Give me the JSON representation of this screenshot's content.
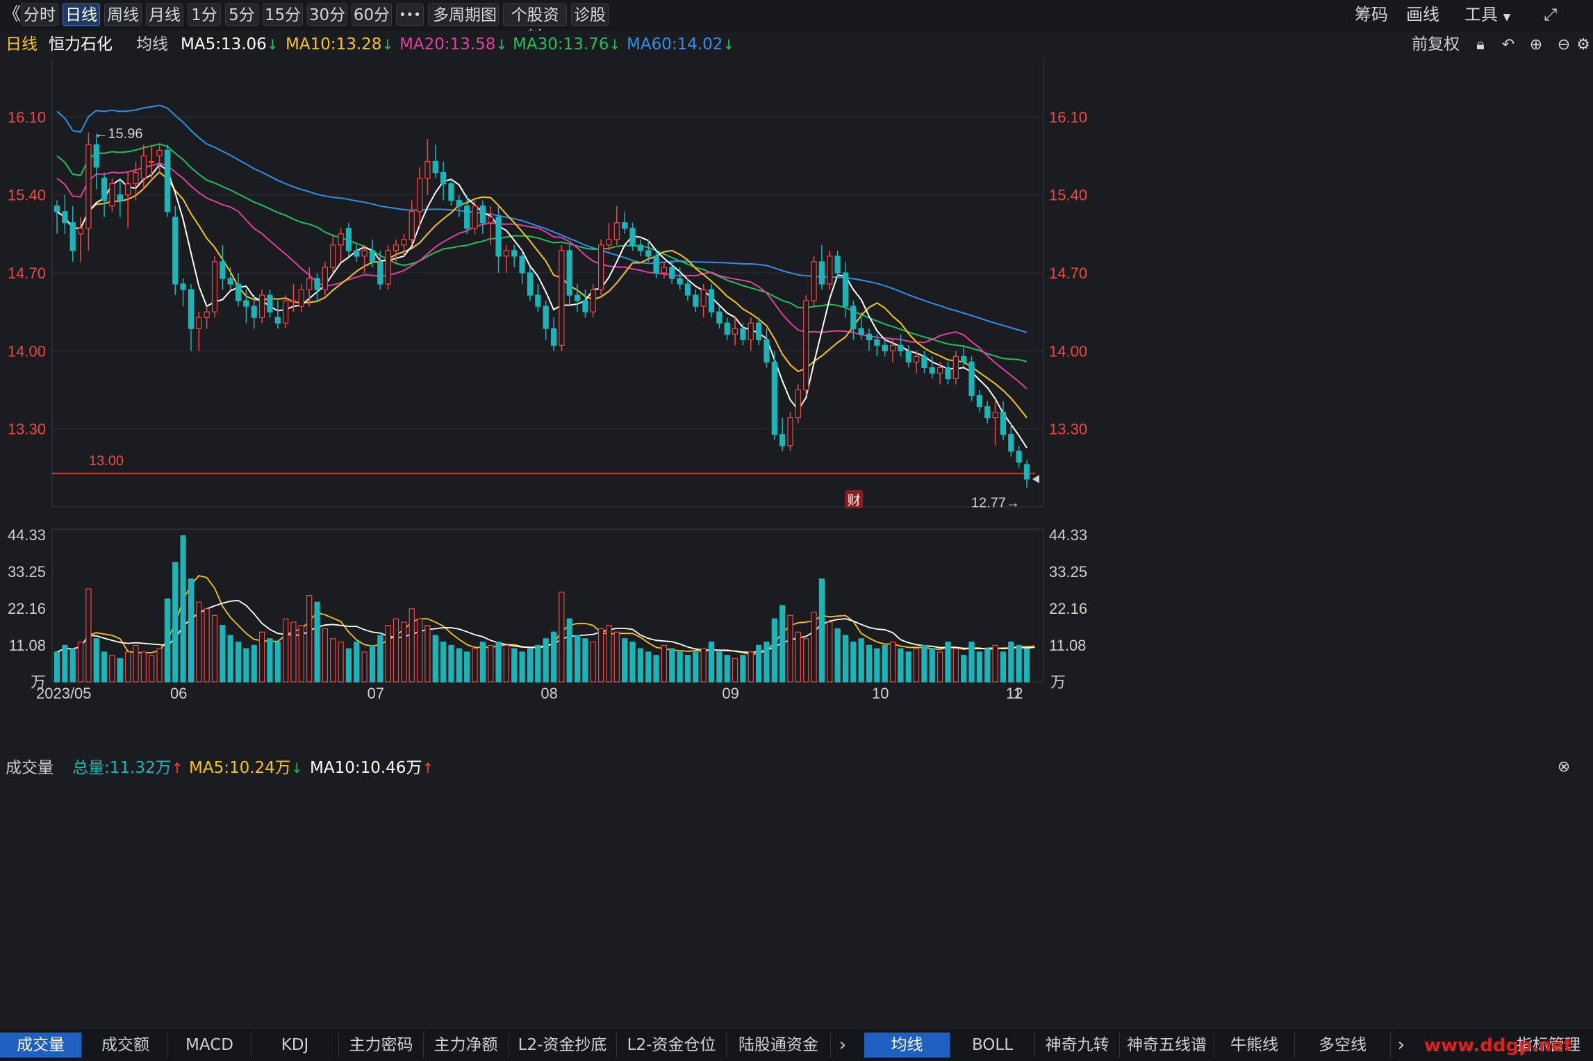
{
  "toolbar": {
    "back_glyph": "《",
    "periods": [
      "分时",
      "日线",
      "周线",
      "月线",
      "1分",
      "5分",
      "15分",
      "30分",
      "60分"
    ],
    "active_period": "日线",
    "more_label": "•••",
    "multi_period_label": "多周期图",
    "stock_info_label": "个股资料",
    "diagnose_label": "诊股",
    "right_items": [
      "筹码",
      "画线",
      "工具"
    ],
    "fullscreen_icon": "fullscreen-icon"
  },
  "infobar": {
    "period_label": "日线",
    "stock_name": "恒力石化",
    "ma_label": "均线",
    "ma5": "MA5:13.06",
    "ma10": "MA10:13.28",
    "ma20": "MA20:13.58",
    "ma30": "MA30:13.76",
    "ma60": "MA60:14.02",
    "down_arrow": "↓",
    "adjust_label": "前复权",
    "icons": [
      "lock-icon",
      "undo-icon",
      "zoom-in-icon",
      "zoom-out-icon",
      "settings-icon"
    ]
  },
  "price_axis": {
    "ticks": [
      "16.10",
      "15.40",
      "14.70",
      "14.00",
      "13.30"
    ]
  },
  "annotations": {
    "high_label": "←15.96",
    "low_label": "12.77→",
    "level_line_label": "13.00",
    "finance_marker": "财"
  },
  "volume": {
    "title": "成交量",
    "total": "总量:11.32万",
    "ma5": "MA5:10.24万",
    "ma10": "MA10:10.46万",
    "up_arrow": "↑",
    "down_arrow": "↓",
    "ticks": [
      "44.33",
      "33.25",
      "22.16",
      "11.08"
    ],
    "unit": "万"
  },
  "date_axis": {
    "labels": [
      "2023/05",
      "06",
      "07",
      "08",
      "09",
      "10",
      "11",
      "12"
    ]
  },
  "bottom_tabs_left": [
    "成交量",
    "成交额",
    "MACD",
    "KDJ",
    "主力密码",
    "主力净额",
    "L2-资金抄底",
    "L2-资金仓位",
    "陆股通资金"
  ],
  "bottom_tabs_right": [
    "均线",
    "BOLL",
    "神奇九转",
    "神奇五线谱",
    "牛熊线",
    "多空线"
  ],
  "bottom_active_left": "成交量",
  "bottom_active_right": "均线",
  "indicator_manage": "指标管理",
  "watermark": "www.ddgp.net",
  "colors": {
    "up": "#f04848",
    "down": "#1ab5b8",
    "ma5": "#ffffff",
    "ma10": "#f5c518",
    "ma20": "#e040a0",
    "ma30": "#1fc060",
    "ma60": "#2f8fe8",
    "axis_text": "#f04848",
    "level_line": "#e83030"
  },
  "chart_data": {
    "type": "candlestick",
    "title": "",
    "x_period_labels": [
      "2023/05",
      "06",
      "07",
      "08",
      "09",
      "10",
      "11",
      "12"
    ],
    "ylim": [
      12.6,
      16.7
    ],
    "candles_ohlc": [
      [
        15.3,
        15.35,
        15.05,
        15.25
      ],
      [
        15.25,
        15.4,
        15.05,
        15.15
      ],
      [
        15.15,
        15.3,
        14.8,
        14.9
      ],
      [
        15.05,
        15.2,
        14.8,
        15.1
      ],
      [
        15.1,
        15.96,
        14.9,
        15.85
      ],
      [
        15.85,
        15.95,
        15.45,
        15.65
      ],
      [
        15.55,
        15.6,
        15.2,
        15.35
      ],
      [
        15.3,
        15.55,
        15.25,
        15.5
      ],
      [
        15.4,
        15.55,
        15.2,
        15.35
      ],
      [
        15.4,
        15.6,
        15.1,
        15.5
      ],
      [
        15.5,
        15.7,
        15.35,
        15.6
      ],
      [
        15.55,
        15.85,
        15.45,
        15.75
      ],
      [
        15.7,
        15.85,
        15.55,
        15.7
      ],
      [
        15.75,
        15.85,
        15.6,
        15.8
      ],
      [
        15.8,
        15.85,
        15.2,
        15.25
      ],
      [
        15.2,
        15.3,
        14.5,
        14.6
      ],
      [
        14.6,
        14.65,
        14.4,
        14.55
      ],
      [
        14.55,
        14.6,
        14.0,
        14.2
      ],
      [
        14.2,
        14.35,
        14.0,
        14.3
      ],
      [
        14.3,
        14.4,
        14.2,
        14.35
      ],
      [
        14.35,
        14.85,
        14.3,
        14.8
      ],
      [
        14.8,
        14.95,
        14.55,
        14.65
      ],
      [
        14.65,
        14.75,
        14.55,
        14.6
      ],
      [
        14.6,
        14.7,
        14.4,
        14.45
      ],
      [
        14.45,
        14.55,
        14.25,
        14.4
      ],
      [
        14.4,
        14.5,
        14.2,
        14.3
      ],
      [
        14.3,
        14.55,
        14.25,
        14.5
      ],
      [
        14.5,
        14.55,
        14.3,
        14.35
      ],
      [
        14.3,
        14.45,
        14.2,
        14.25
      ],
      [
        14.25,
        14.5,
        14.2,
        14.45
      ],
      [
        14.45,
        14.6,
        14.35,
        14.45
      ],
      [
        14.4,
        14.6,
        14.35,
        14.55
      ],
      [
        14.55,
        14.75,
        14.4,
        14.65
      ],
      [
        14.65,
        14.7,
        14.45,
        14.55
      ],
      [
        14.55,
        14.8,
        14.5,
        14.75
      ],
      [
        14.75,
        15.05,
        14.7,
        14.95
      ],
      [
        14.95,
        15.1,
        14.8,
        15.05
      ],
      [
        15.1,
        15.15,
        14.85,
        14.9
      ],
      [
        14.9,
        14.95,
        14.8,
        14.85
      ],
      [
        14.85,
        14.95,
        14.7,
        14.9
      ],
      [
        14.9,
        15.0,
        14.75,
        14.8
      ],
      [
        14.8,
        14.9,
        14.55,
        14.6
      ],
      [
        14.6,
        14.95,
        14.55,
        14.9
      ],
      [
        14.9,
        15.0,
        14.8,
        14.95
      ],
      [
        14.95,
        15.05,
        14.85,
        15.0
      ],
      [
        15.0,
        15.35,
        14.95,
        15.25
      ],
      [
        15.25,
        15.65,
        15.1,
        15.55
      ],
      [
        15.55,
        15.9,
        15.4,
        15.7
      ],
      [
        15.7,
        15.85,
        15.55,
        15.6
      ],
      [
        15.6,
        15.7,
        15.35,
        15.5
      ],
      [
        15.5,
        15.55,
        15.3,
        15.35
      ],
      [
        15.35,
        15.4,
        15.2,
        15.3
      ],
      [
        15.3,
        15.4,
        15.05,
        15.1
      ],
      [
        15.1,
        15.35,
        15.05,
        15.3
      ],
      [
        15.3,
        15.35,
        15.05,
        15.15
      ],
      [
        15.15,
        15.3,
        14.95,
        15.2
      ],
      [
        15.2,
        15.3,
        14.7,
        14.85
      ],
      [
        14.85,
        14.95,
        14.7,
        14.9
      ],
      [
        14.9,
        14.95,
        14.75,
        14.85
      ],
      [
        14.85,
        14.9,
        14.6,
        14.7
      ],
      [
        14.7,
        14.75,
        14.45,
        14.5
      ],
      [
        14.5,
        14.6,
        14.35,
        14.4
      ],
      [
        14.4,
        14.45,
        14.1,
        14.2
      ],
      [
        14.2,
        14.3,
        14.0,
        14.05
      ],
      [
        14.05,
        14.95,
        14.0,
        14.9
      ],
      [
        14.9,
        14.95,
        14.4,
        14.5
      ],
      [
        14.5,
        14.6,
        14.35,
        14.45
      ],
      [
        14.45,
        14.55,
        14.3,
        14.35
      ],
      [
        14.35,
        14.6,
        14.3,
        14.55
      ],
      [
        14.55,
        15.0,
        14.5,
        14.95
      ],
      [
        14.95,
        15.15,
        14.9,
        15.0
      ],
      [
        15.0,
        15.3,
        14.95,
        15.15
      ],
      [
        15.15,
        15.25,
        15.05,
        15.1
      ],
      [
        15.1,
        15.15,
        14.9,
        14.95
      ],
      [
        14.95,
        15.0,
        14.85,
        14.9
      ],
      [
        14.9,
        15.0,
        14.8,
        14.85
      ],
      [
        14.85,
        14.9,
        14.65,
        14.7
      ],
      [
        14.7,
        14.8,
        14.65,
        14.75
      ],
      [
        14.75,
        14.8,
        14.6,
        14.65
      ],
      [
        14.65,
        14.75,
        14.55,
        14.6
      ],
      [
        14.6,
        14.65,
        14.45,
        14.5
      ],
      [
        14.5,
        14.55,
        14.35,
        14.4
      ],
      [
        14.4,
        14.6,
        14.3,
        14.55
      ],
      [
        14.55,
        14.6,
        14.3,
        14.35
      ],
      [
        14.35,
        14.4,
        14.2,
        14.25
      ],
      [
        14.25,
        14.3,
        14.1,
        14.15
      ],
      [
        14.15,
        14.3,
        14.05,
        14.2
      ],
      [
        14.2,
        14.25,
        14.05,
        14.1
      ],
      [
        14.1,
        14.3,
        14.0,
        14.25
      ],
      [
        14.25,
        14.3,
        14.05,
        14.1
      ],
      [
        14.1,
        14.2,
        13.85,
        13.9
      ],
      [
        13.9,
        14.0,
        13.2,
        13.25
      ],
      [
        13.25,
        13.4,
        13.1,
        13.15
      ],
      [
        13.15,
        13.45,
        13.1,
        13.4
      ],
      [
        13.4,
        13.7,
        13.35,
        13.65
      ],
      [
        13.65,
        14.5,
        13.6,
        14.45
      ],
      [
        14.45,
        14.85,
        14.4,
        14.8
      ],
      [
        14.8,
        14.95,
        14.55,
        14.6
      ],
      [
        14.6,
        14.9,
        14.55,
        14.85
      ],
      [
        14.85,
        14.9,
        14.65,
        14.7
      ],
      [
        14.7,
        14.8,
        14.3,
        14.4
      ],
      [
        14.4,
        14.45,
        14.1,
        14.2
      ],
      [
        14.2,
        14.35,
        14.1,
        14.15
      ],
      [
        14.15,
        14.2,
        14.0,
        14.1
      ],
      [
        14.1,
        14.15,
        13.95,
        14.05
      ],
      [
        14.05,
        14.1,
        13.95,
        14.0
      ],
      [
        14.0,
        14.1,
        13.9,
        14.05
      ],
      [
        14.05,
        14.15,
        13.95,
        14.0
      ],
      [
        14.0,
        14.05,
        13.85,
        13.9
      ],
      [
        13.9,
        14.0,
        13.8,
        13.95
      ],
      [
        13.95,
        14.0,
        13.8,
        13.85
      ],
      [
        13.85,
        13.95,
        13.75,
        13.8
      ],
      [
        13.8,
        13.9,
        13.7,
        13.85
      ],
      [
        13.85,
        13.9,
        13.7,
        13.75
      ],
      [
        13.75,
        14.0,
        13.7,
        13.95
      ],
      [
        13.95,
        14.05,
        13.85,
        13.9
      ],
      [
        13.9,
        13.95,
        13.55,
        13.6
      ],
      [
        13.6,
        13.65,
        13.45,
        13.5
      ],
      [
        13.5,
        13.55,
        13.35,
        13.4
      ],
      [
        13.4,
        13.55,
        13.15,
        13.45
      ],
      [
        13.45,
        13.55,
        13.2,
        13.25
      ],
      [
        13.25,
        13.35,
        13.05,
        13.1
      ],
      [
        13.1,
        13.15,
        12.95,
        13.0
      ],
      [
        12.98,
        13.02,
        12.77,
        12.85
      ]
    ],
    "volume_wan": [
      9,
      11,
      10,
      12,
      28,
      13,
      9,
      8,
      7,
      9,
      11,
      9,
      8,
      10,
      25,
      36,
      44,
      31,
      24,
      22,
      20,
      17,
      14,
      12,
      10,
      11,
      15,
      13,
      12,
      19,
      18,
      17,
      26,
      24,
      16,
      13,
      12,
      10,
      12,
      9,
      11,
      14,
      17,
      19,
      18,
      22,
      19,
      17,
      14,
      12,
      11,
      10,
      9,
      10,
      12,
      11,
      12,
      11,
      10,
      9,
      10,
      11,
      13,
      15,
      27,
      19,
      14,
      13,
      12,
      16,
      17,
      15,
      13,
      12,
      10,
      9,
      8,
      11,
      10,
      9,
      8,
      9,
      10,
      12,
      9,
      8,
      7,
      8,
      9,
      11,
      12,
      19,
      23,
      20,
      15,
      13,
      21,
      31,
      18,
      16,
      14,
      12,
      13,
      11,
      10,
      11,
      12,
      10,
      9,
      10,
      11,
      10,
      9,
      12,
      10,
      8,
      12,
      9,
      10,
      11,
      9,
      12,
      11,
      10,
      12
    ],
    "volume_ticks": [
      "44.33",
      "33.25",
      "22.16",
      "11.08"
    ],
    "volume_unit": "万"
  }
}
